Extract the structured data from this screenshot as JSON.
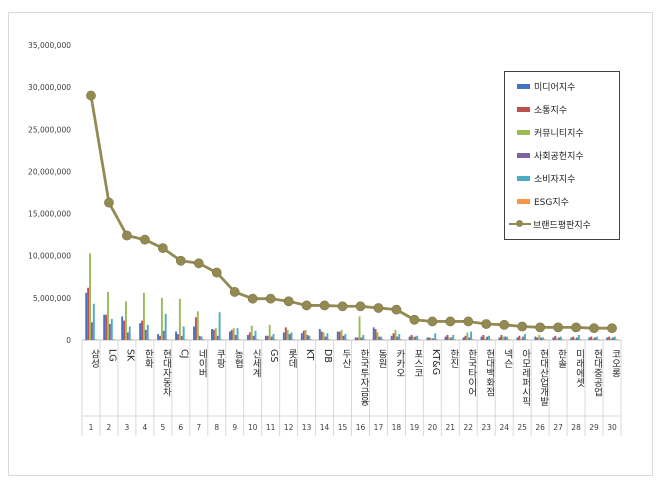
{
  "colors": {
    "media": "#4472c4",
    "communication": "#c0504d",
    "community": "#9bbb59",
    "social": "#8064a2",
    "consumer": "#4bacc6",
    "esg": "#f79646",
    "brand_line": "#948a54",
    "brand_marker": "#938953"
  },
  "legend": {
    "items": [
      {
        "label": "미디어지수",
        "key": "media"
      },
      {
        "label": "소통지수",
        "key": "communication"
      },
      {
        "label": "커뮤니티지수",
        "key": "community"
      },
      {
        "label": "사회공헌지수",
        "key": "social"
      },
      {
        "label": "소비자지수",
        "key": "consumer"
      },
      {
        "label": "ESG지수",
        "key": "esg"
      },
      {
        "label": "브랜드평판지수",
        "key": "brand_line"
      }
    ]
  },
  "chart_data": {
    "type": "bar",
    "y_ticks": [
      "0",
      "5,000,000",
      "10,000,000",
      "15,000,000",
      "20,000,000",
      "25,000,000",
      "30,000,000",
      "35,000,000"
    ],
    "ylim": [
      0,
      35000000
    ],
    "grid": false,
    "legend_position": "top-right",
    "categories": [
      "삼성",
      "LG",
      "SK",
      "한화",
      "현대자동차",
      "CJ",
      "네이버",
      "쿠팡",
      "농협",
      "신세계",
      "GS",
      "롯데",
      "KT",
      "DB",
      "두산",
      "한국투자금융",
      "동원",
      "카카오",
      "포스코",
      "KT&G",
      "한진",
      "한국타이어",
      "현대백화점",
      "넥슨",
      "아모레퍼시픽",
      "현대산업개발",
      "한솔",
      "미래에셋",
      "현대중공업",
      "코오롱"
    ],
    "ranks": [
      "1",
      "2",
      "3",
      "4",
      "5",
      "6",
      "7",
      "8",
      "9",
      "10",
      "11",
      "12",
      "13",
      "14",
      "15",
      "16",
      "17",
      "18",
      "19",
      "20",
      "21",
      "22",
      "23",
      "24",
      "25",
      "26",
      "27",
      "28",
      "29",
      "30"
    ],
    "series": [
      {
        "name": "미디어지수",
        "key": "media",
        "values": [
          5600000,
          3000000,
          2800000,
          2000000,
          700000,
          1000000,
          1600000,
          1300000,
          1000000,
          600000,
          500000,
          900000,
          800000,
          1300000,
          1000000,
          300000,
          1500000,
          500000,
          400000,
          300000,
          400000,
          300000,
          400000,
          300000,
          300000,
          400000,
          300000,
          300000,
          300000,
          300000
        ]
      },
      {
        "name": "소통지수",
        "key": "communication",
        "values": [
          6200000,
          3000000,
          2300000,
          2300000,
          500000,
          700000,
          2700000,
          1200000,
          1200000,
          900000,
          500000,
          1500000,
          1100000,
          1000000,
          1000000,
          300000,
          1300000,
          800000,
          600000,
          300000,
          600000,
          500000,
          600000,
          600000,
          500000,
          300000,
          500000,
          400000,
          400000,
          400000
        ]
      },
      {
        "name": "커뮤니티지수",
        "key": "community",
        "values": [
          10300000,
          5700000,
          4600000,
          5600000,
          5000000,
          4900000,
          3400000,
          1400000,
          1400000,
          1700000,
          1800000,
          1200000,
          1200000,
          900000,
          1200000,
          2800000,
          900000,
          1200000,
          400000,
          200000,
          300000,
          900000,
          200000,
          400000,
          200000,
          600000,
          200000,
          200000,
          200000,
          200000
        ]
      },
      {
        "name": "사회공헌지수",
        "key": "social",
        "values": [
          2100000,
          1900000,
          900000,
          1200000,
          1100000,
          500000,
          500000,
          500000,
          600000,
          500000,
          400000,
          700000,
          600000,
          400000,
          500000,
          300000,
          400000,
          400000,
          400000,
          200000,
          300000,
          300000,
          400000,
          400000,
          400000,
          300000,
          300000,
          300000,
          300000,
          300000
        ]
      },
      {
        "name": "소비자지수",
        "key": "consumer",
        "values": [
          4300000,
          2500000,
          1600000,
          1800000,
          3100000,
          1600000,
          400000,
          3300000,
          1400000,
          1100000,
          700000,
          900000,
          500000,
          800000,
          700000,
          600000,
          400000,
          700000,
          500000,
          800000,
          600000,
          1000000,
          500000,
          400000,
          700000,
          300000,
          400000,
          600000,
          400000,
          400000
        ]
      },
      {
        "name": "ESG지수",
        "key": "esg",
        "values": [
          100000,
          100000,
          100000,
          100000,
          100000,
          100000,
          100000,
          100000,
          100000,
          100000,
          100000,
          100000,
          100000,
          100000,
          100000,
          100000,
          100000,
          100000,
          100000,
          100000,
          100000,
          100000,
          100000,
          100000,
          100000,
          100000,
          100000,
          100000,
          100000,
          100000
        ]
      }
    ],
    "line_series": {
      "name": "브랜드평판지수",
      "key": "brand_line",
      "values": [
        29000000,
        16300000,
        12400000,
        11900000,
        10900000,
        9400000,
        9100000,
        8000000,
        5700000,
        4900000,
        4900000,
        4600000,
        4100000,
        4100000,
        4000000,
        4000000,
        3800000,
        3600000,
        2400000,
        2200000,
        2200000,
        2200000,
        1900000,
        1800000,
        1600000,
        1500000,
        1500000,
        1500000,
        1400000,
        1400000
      ]
    }
  }
}
